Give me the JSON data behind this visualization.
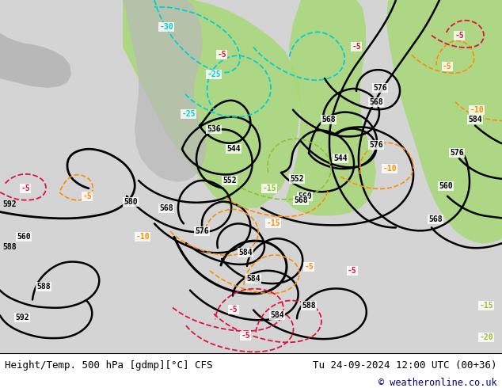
{
  "title_left": "Height/Temp. 500 hPa [gdmp][°C] CFS",
  "title_right": "Tu 24-09-2024 12:00 UTC (00+36)",
  "copyright": "© weatheronline.co.uk",
  "bg_color": "#d3d3d3",
  "land_color": "#c8c8c8",
  "green_color": "#90ee90",
  "map_bg": "#d0d0d0",
  "title_font_size": 9,
  "copyright_font_size": 8.5,
  "fig_width": 6.34,
  "fig_height": 4.9,
  "dpi": 100,
  "bottom_bar_color": "#ffffff",
  "text_color_left": "#000000",
  "text_color_right": "#000000",
  "copyright_color": "#00008b"
}
